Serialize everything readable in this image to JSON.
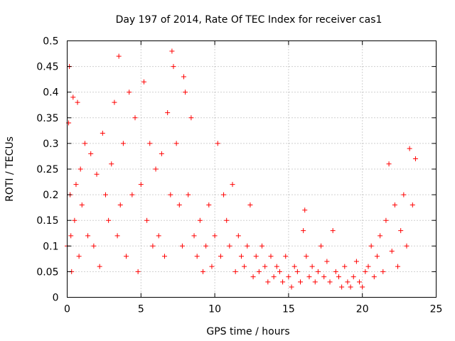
{
  "chart_data": {
    "type": "scatter",
    "title": "Day 197 of 2014, Rate Of TEC Index for receiver cas1",
    "xlabel": "GPS time / hours",
    "ylabel": "ROTI / TECUs",
    "xlim": [
      0,
      25
    ],
    "ylim": [
      0,
      0.5
    ],
    "x_ticks": [
      0,
      5,
      10,
      15,
      20,
      25
    ],
    "y_ticks": [
      0,
      0.05,
      0.1,
      0.15,
      0.2,
      0.25,
      0.3,
      0.35,
      0.4,
      0.45,
      0.5
    ],
    "x_tick_labels": [
      "0",
      "5",
      "10",
      "15",
      "20",
      "25"
    ],
    "y_tick_labels": [
      "0",
      "0.05",
      "0.1",
      "0.15",
      "0.2",
      "0.25",
      "0.3",
      "0.35",
      "0.4",
      "0.45",
      "0.5"
    ],
    "grid": true,
    "marker": "+",
    "marker_color": "#ff0000",
    "series": [
      {
        "name": "ROTI",
        "x": [
          0.0,
          0.1,
          0.15,
          0.2,
          0.25,
          0.3,
          0.4,
          0.5,
          0.6,
          0.7,
          0.8,
          0.9,
          1.0,
          1.2,
          1.4,
          1.6,
          1.8,
          2.0,
          2.2,
          2.4,
          2.6,
          2.8,
          3.0,
          3.2,
          3.4,
          3.5,
          3.6,
          3.8,
          4.0,
          4.2,
          4.4,
          4.6,
          4.8,
          5.0,
          5.2,
          5.4,
          5.6,
          5.8,
          6.0,
          6.2,
          6.4,
          6.6,
          6.8,
          7.0,
          7.1,
          7.2,
          7.4,
          7.6,
          7.8,
          7.9,
          8.0,
          8.2,
          8.4,
          8.6,
          8.8,
          9.0,
          9.2,
          9.4,
          9.6,
          9.8,
          10.0,
          10.2,
          10.4,
          10.6,
          10.8,
          11.0,
          11.2,
          11.4,
          11.6,
          11.8,
          12.0,
          12.2,
          12.4,
          12.6,
          12.8,
          13.0,
          13.2,
          13.4,
          13.6,
          13.8,
          14.0,
          14.2,
          14.4,
          14.6,
          14.8,
          15.0,
          15.2,
          15.4,
          15.6,
          15.8,
          16.0,
          16.1,
          16.2,
          16.4,
          16.6,
          16.8,
          17.0,
          17.2,
          17.4,
          17.6,
          17.8,
          18.0,
          18.2,
          18.4,
          18.6,
          18.8,
          19.0,
          19.2,
          19.4,
          19.6,
          19.8,
          20.0,
          20.2,
          20.4,
          20.6,
          20.8,
          21.0,
          21.2,
          21.4,
          21.6,
          21.8,
          22.0,
          22.2,
          22.4,
          22.6,
          22.8,
          23.0,
          23.2,
          23.4,
          23.6
        ],
        "y": [
          0.1,
          0.34,
          0.45,
          0.2,
          0.12,
          0.05,
          0.39,
          0.15,
          0.22,
          0.38,
          0.08,
          0.25,
          0.18,
          0.3,
          0.12,
          0.28,
          0.1,
          0.24,
          0.06,
          0.32,
          0.2,
          0.15,
          0.26,
          0.38,
          0.12,
          0.47,
          0.18,
          0.3,
          0.08,
          0.4,
          0.2,
          0.35,
          0.05,
          0.22,
          0.42,
          0.15,
          0.3,
          0.1,
          0.25,
          0.12,
          0.28,
          0.08,
          0.36,
          0.2,
          0.48,
          0.45,
          0.3,
          0.18,
          0.1,
          0.43,
          0.4,
          0.2,
          0.35,
          0.12,
          0.08,
          0.15,
          0.05,
          0.1,
          0.18,
          0.06,
          0.12,
          0.3,
          0.08,
          0.2,
          0.15,
          0.1,
          0.22,
          0.05,
          0.12,
          0.08,
          0.06,
          0.1,
          0.18,
          0.04,
          0.08,
          0.05,
          0.1,
          0.06,
          0.03,
          0.08,
          0.04,
          0.06,
          0.05,
          0.03,
          0.08,
          0.04,
          0.02,
          0.06,
          0.05,
          0.03,
          0.13,
          0.17,
          0.08,
          0.04,
          0.06,
          0.03,
          0.05,
          0.1,
          0.04,
          0.07,
          0.03,
          0.13,
          0.05,
          0.04,
          0.02,
          0.06,
          0.03,
          0.02,
          0.04,
          0.07,
          0.03,
          0.02,
          0.05,
          0.06,
          0.1,
          0.04,
          0.08,
          0.12,
          0.05,
          0.15,
          0.26,
          0.09,
          0.18,
          0.06,
          0.13,
          0.2,
          0.1,
          0.29,
          0.18,
          0.27
        ]
      }
    ]
  }
}
